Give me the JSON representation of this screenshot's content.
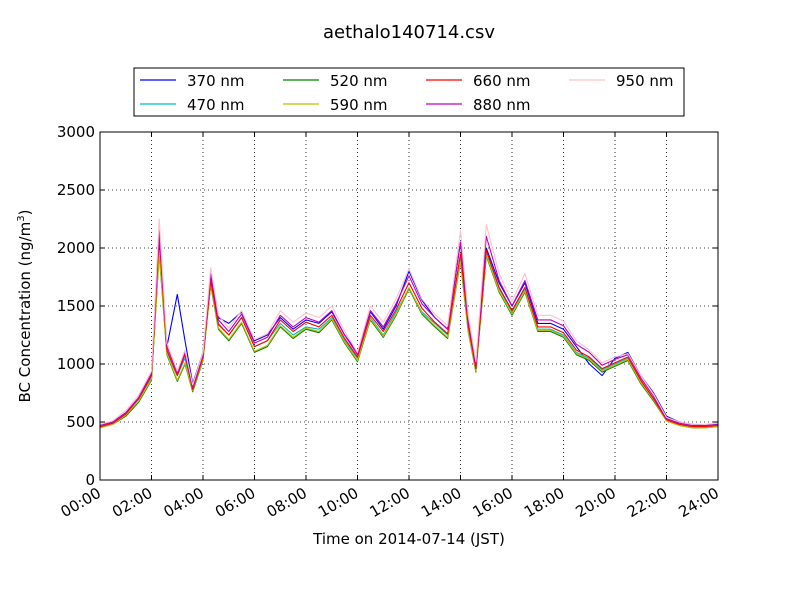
{
  "chart_data": {
    "type": "line",
    "title": "aethalo140714.csv",
    "xlabel": "Time on 2014-07-14 (JST)",
    "ylabel": "BC Concentration (ng/m³)",
    "ylabel_parts": {
      "main": "BC Concentration (ng/m",
      "sup": "3",
      "end": ")"
    },
    "xlim": [
      0,
      24
    ],
    "ylim": [
      0,
      3000
    ],
    "x_ticks": [
      "00:00",
      "02:00",
      "04:00",
      "06:00",
      "08:00",
      "10:00",
      "12:00",
      "14:00",
      "16:00",
      "18:00",
      "20:00",
      "22:00",
      "24:00"
    ],
    "y_ticks": [
      "0",
      "500",
      "1000",
      "1500",
      "2000",
      "2500",
      "3000"
    ],
    "grid": true,
    "legend_position": "top",
    "x_anchor_hours": [
      0,
      0.5,
      1,
      1.5,
      2,
      2.3,
      2.6,
      3,
      3.3,
      3.6,
      4,
      4.3,
      4.6,
      5,
      5.5,
      6,
      6.5,
      7,
      7.5,
      8,
      8.5,
      9,
      9.5,
      10,
      10.5,
      11,
      11.5,
      12,
      12.5,
      13,
      13.5,
      14,
      14.3,
      14.6,
      15,
      15.5,
      16,
      16.5,
      17,
      17.5,
      18,
      18.5,
      19,
      19.5,
      20,
      20.5,
      21,
      21.5,
      22,
      22.5,
      23,
      23.5,
      24
    ],
    "x_anchor_note": "x values in hours from 00:00",
    "series": [
      {
        "name": "370 nm",
        "color": "#0000ff",
        "values": [
          470,
          500,
          580,
          700,
          900,
          2050,
          1150,
          1600,
          1200,
          830,
          1100,
          1750,
          1400,
          1350,
          1450,
          1200,
          1250,
          1400,
          1300,
          1380,
          1350,
          1450,
          1250,
          1100,
          1450,
          1300,
          1500,
          1800,
          1550,
          1400,
          1300,
          2050,
          1350,
          1000,
          2000,
          1700,
          1500,
          1700,
          1350,
          1350,
          1300,
          1150,
          1000,
          900,
          1050,
          1100,
          900,
          750,
          550,
          500,
          480,
          470,
          480
        ]
      },
      {
        "name": "470 nm",
        "color": "#00bfbf",
        "values": [
          460,
          490,
          560,
          680,
          880,
          1980,
          1100,
          900,
          1050,
          780,
          1050,
          1700,
          1350,
          1250,
          1400,
          1150,
          1200,
          1350,
          1250,
          1320,
          1300,
          1400,
          1200,
          1050,
          1400,
          1250,
          1450,
          1650,
          1450,
          1350,
          1250,
          1900,
          1300,
          950,
          1950,
          1650,
          1450,
          1650,
          1300,
          1300,
          1250,
          1100,
          1050,
          950,
          1000,
          1050,
          850,
          700,
          520,
          480,
          460,
          460,
          470
        ]
      },
      {
        "name": "520 nm",
        "color": "#008000",
        "values": [
          450,
          480,
          550,
          670,
          860,
          1950,
          1080,
          850,
          1000,
          760,
          1030,
          1680,
          1300,
          1200,
          1350,
          1100,
          1150,
          1320,
          1220,
          1300,
          1270,
          1380,
          1180,
          1020,
          1380,
          1230,
          1420,
          1650,
          1430,
          1320,
          1220,
          1880,
          1280,
          930,
          1930,
          1620,
          1420,
          1620,
          1280,
          1280,
          1230,
          1080,
          1030,
          930,
          980,
          1030,
          830,
          680,
          510,
          470,
          450,
          450,
          460
        ]
      },
      {
        "name": "590 nm",
        "color": "#bfbf00",
        "values": [
          450,
          480,
          560,
          680,
          870,
          1960,
          1090,
          860,
          1010,
          770,
          1040,
          1690,
          1310,
          1210,
          1360,
          1110,
          1160,
          1330,
          1230,
          1310,
          1280,
          1390,
          1190,
          1030,
          1390,
          1240,
          1430,
          1660,
          1440,
          1330,
          1230,
          1890,
          1290,
          940,
          1940,
          1630,
          1430,
          1630,
          1290,
          1290,
          1240,
          1090,
          1040,
          940,
          990,
          1040,
          840,
          690,
          510,
          470,
          450,
          450,
          460
        ]
      },
      {
        "name": "660 nm",
        "color": "#ff0000",
        "values": [
          460,
          490,
          570,
          700,
          900,
          2100,
          1120,
          900,
          1080,
          780,
          1060,
          1720,
          1340,
          1250,
          1400,
          1150,
          1200,
          1380,
          1280,
          1360,
          1320,
          1420,
          1220,
          1060,
          1420,
          1280,
          1470,
          1700,
          1480,
          1360,
          1260,
          1950,
          1330,
          960,
          1980,
          1660,
          1460,
          1660,
          1320,
          1320,
          1270,
          1120,
          1060,
          960,
          1010,
          1060,
          860,
          700,
          520,
          480,
          460,
          460,
          470
        ]
      },
      {
        "name": "880 nm",
        "color": "#bf00bf",
        "values": [
          470,
          500,
          580,
          710,
          920,
          2150,
          1150,
          920,
          1100,
          800,
          1080,
          1780,
          1380,
          1280,
          1430,
          1180,
          1230,
          1420,
          1320,
          1400,
          1360,
          1460,
          1250,
          1080,
          1460,
          1320,
          1520,
          1760,
          1520,
          1400,
          1300,
          2050,
          1380,
          990,
          2100,
          1720,
          1500,
          1720,
          1380,
          1380,
          1330,
          1170,
          1100,
          990,
          1040,
          1080,
          880,
          720,
          530,
          490,
          470,
          470,
          480
        ]
      },
      {
        "name": "950 nm",
        "color": "#ffc0cb",
        "values": [
          480,
          510,
          600,
          730,
          940,
          2250,
          1180,
          940,
          1120,
          820,
          1100,
          1830,
          1420,
          1310,
          1460,
          1210,
          1260,
          1460,
          1360,
          1440,
          1400,
          1500,
          1280,
          1100,
          1500,
          1360,
          1560,
          1820,
          1560,
          1430,
          1330,
          2150,
          1420,
          1020,
          2200,
          1780,
          1540,
          1780,
          1420,
          1420,
          1370,
          1200,
          1120,
          1010,
          1060,
          1090,
          900,
          740,
          540,
          500,
          480,
          480,
          490
        ]
      }
    ]
  }
}
